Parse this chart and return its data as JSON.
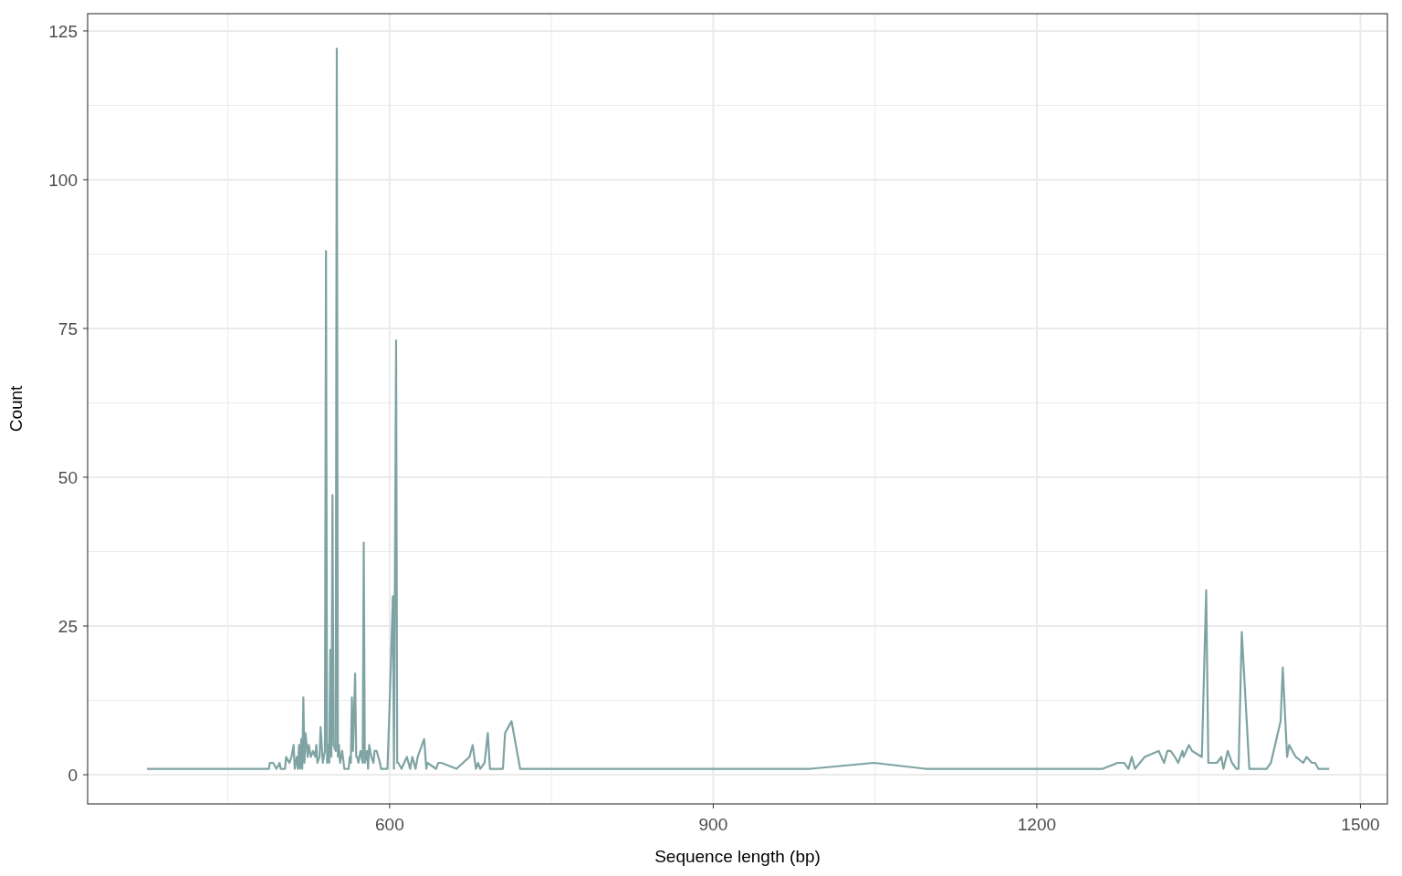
{
  "chart_data": {
    "type": "line",
    "xlabel": "Sequence length (bp)",
    "ylabel": "Count",
    "xlim": [
      320,
      1525
    ],
    "ylim": [
      -4.9,
      127.9
    ],
    "xticks": [
      600,
      900,
      1200,
      1500
    ],
    "yticks": [
      0,
      25,
      50,
      75,
      100,
      125
    ],
    "grid": true,
    "marker": "none",
    "line_style": "solid",
    "series": [
      {
        "color": "#7fa3a3",
        "x": [
          375,
          488,
          489,
          492,
          495,
          498,
          499,
          503,
          504,
          507,
          509,
          511,
          512,
          514,
          515,
          516,
          517,
          518,
          519,
          520,
          521,
          522,
          524,
          525,
          527,
          529,
          531,
          532,
          533,
          535,
          536,
          538,
          540,
          541,
          542,
          543,
          544,
          545,
          546,
          547,
          548,
          550,
          551,
          552,
          553,
          554,
          556,
          558,
          560,
          562,
          563,
          564,
          565,
          566,
          568,
          569,
          570,
          571,
          573,
          575,
          576,
          577,
          578,
          579,
          580,
          581,
          583,
          585,
          586,
          588,
          591,
          592,
          595,
          598,
          600,
          603,
          604,
          606,
          607,
          608,
          611,
          616,
          619,
          621,
          624,
          626,
          632,
          634,
          635,
          643,
          645,
          648,
          662,
          674,
          677,
          680,
          682,
          684,
          688,
          691,
          693,
          705,
          707,
          713,
          721,
          990,
          1049,
          1097,
          1261,
          1275,
          1281,
          1285,
          1288,
          1291,
          1300,
          1313,
          1318,
          1321,
          1324,
          1328,
          1331,
          1335,
          1336,
          1341,
          1344,
          1353,
          1357,
          1359,
          1367,
          1371,
          1373,
          1377,
          1381,
          1385,
          1387,
          1390,
          1397,
          1413,
          1417,
          1426,
          1428,
          1432,
          1434,
          1440,
          1447,
          1450,
          1455,
          1458,
          1461,
          1471
        ],
        "values": [
          1,
          1,
          2,
          2,
          1,
          2,
          1,
          1,
          3,
          2,
          3,
          5,
          1,
          3,
          1,
          5,
          1,
          6,
          1,
          13,
          2,
          7,
          3,
          5,
          3,
          4,
          3,
          5,
          2,
          3,
          8,
          2,
          4,
          88,
          2,
          5,
          2,
          21,
          3,
          47,
          5,
          4,
          122,
          3,
          5,
          2,
          4,
          1,
          1,
          1,
          3,
          2,
          13,
          4,
          17,
          3,
          3,
          2,
          4,
          2,
          39,
          2,
          3,
          4,
          1,
          5,
          3,
          2,
          4,
          4,
          2,
          1,
          1,
          1,
          12,
          30,
          1,
          73,
          2,
          2,
          1,
          3,
          1,
          3,
          1,
          3,
          6,
          1,
          2,
          1,
          2,
          2,
          1,
          3,
          5,
          1,
          2,
          1,
          2,
          7,
          1,
          1,
          7,
          9,
          1,
          1,
          2,
          1,
          1,
          2,
          2,
          1,
          3,
          1,
          3,
          4,
          2,
          4,
          4,
          3,
          2,
          4,
          3,
          5,
          4,
          3,
          31,
          2,
          2,
          3,
          1,
          4,
          2,
          1,
          1,
          24,
          1,
          1,
          2,
          9,
          18,
          3,
          5,
          3,
          2,
          3,
          2,
          2,
          1,
          1
        ]
      }
    ]
  }
}
